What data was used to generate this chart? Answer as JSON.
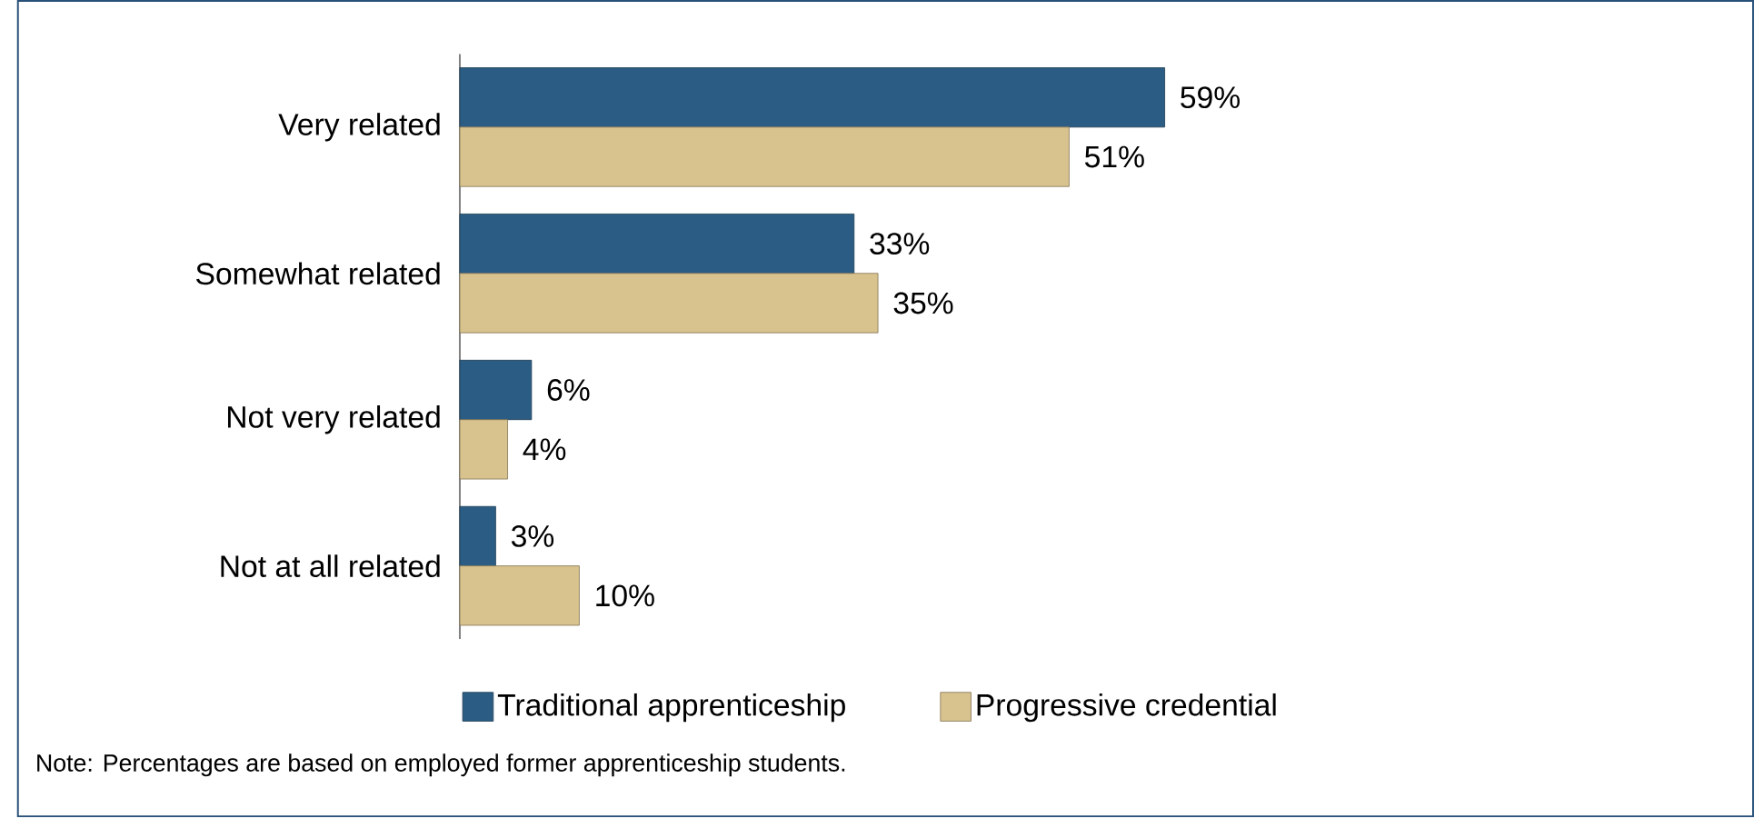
{
  "chart_data": {
    "type": "bar",
    "orientation": "horizontal",
    "categories": [
      "Very related",
      "Somewhat related",
      "Not very related",
      "Not at all related"
    ],
    "series": [
      {
        "name": "Traditional apprenticeship",
        "color": "#2b5d84",
        "values": [
          59,
          33,
          6,
          3
        ],
        "value_labels": [
          "59%",
          "33%",
          "6%",
          "3%"
        ]
      },
      {
        "name": "Progressive credential",
        "color": "#d8c28e",
        "values": [
          51,
          35,
          4,
          10
        ],
        "value_labels": [
          "51%",
          "35%",
          "4%",
          "10%"
        ]
      }
    ],
    "legend": "bottom",
    "annotations": [
      "Note:  Percentages are based on employed former apprenticeship students."
    ]
  }
}
